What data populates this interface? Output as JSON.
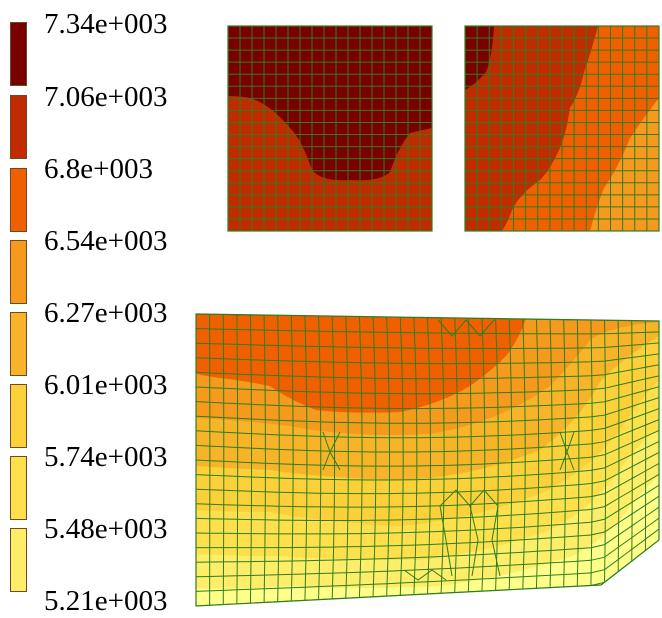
{
  "legend": {
    "labels": [
      "7.34e+003",
      "7.06e+003",
      "6.8e+003",
      "6.54e+003",
      "6.27e+003",
      "6.01e+003",
      "5.74e+003",
      "5.48e+003",
      "5.21e+003"
    ],
    "colors": [
      "#7a0000",
      "#c02c00",
      "#f06000",
      "#f59a1c",
      "#f8b428",
      "#fcd038",
      "#fde04c",
      "#fded68",
      "#ffff8a"
    ],
    "range": [
      5210,
      7340
    ]
  },
  "mesh_color": "#2e7d20",
  "regions": [
    {
      "name": "upper-left-panel",
      "levels": [
        0,
        1
      ]
    },
    {
      "name": "upper-right-panel",
      "levels": [
        0,
        1,
        2,
        3
      ]
    },
    {
      "name": "lower-panel",
      "levels": [
        2,
        3,
        4,
        5,
        6,
        7,
        8
      ]
    }
  ]
}
